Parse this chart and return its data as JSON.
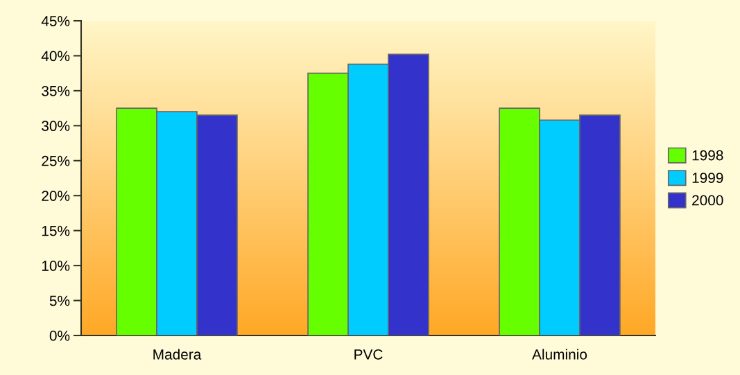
{
  "chart_data": {
    "type": "bar",
    "categories": [
      "Madera",
      "PVC",
      "Aluminio"
    ],
    "series": [
      {
        "name": "1998",
        "color": "#66ff00",
        "values": [
          32.5,
          37.5,
          32.5
        ]
      },
      {
        "name": "1999",
        "color": "#00ccff",
        "values": [
          32.0,
          38.8,
          30.8
        ]
      },
      {
        "name": "2000",
        "color": "#3333cc",
        "values": [
          31.5,
          40.2,
          31.5
        ]
      }
    ],
    "ylim": [
      0,
      45
    ],
    "yticks": [
      {
        "value": 0,
        "label": "0%"
      },
      {
        "value": 5,
        "label": "5%"
      },
      {
        "value": 10,
        "label": "10%"
      },
      {
        "value": 15,
        "label": "15%"
      },
      {
        "value": 20,
        "label": "20%"
      },
      {
        "value": 25,
        "label": "25%"
      },
      {
        "value": 30,
        "label": "30%"
      },
      {
        "value": 35,
        "label": "35%"
      },
      {
        "value": 40,
        "label": "40%"
      },
      {
        "value": 45,
        "label": "45%"
      }
    ],
    "grid": false,
    "legend": "right"
  }
}
